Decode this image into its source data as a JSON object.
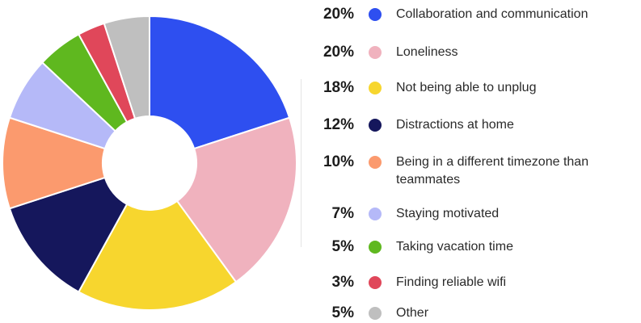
{
  "chart_data": {
    "type": "pie",
    "donut": true,
    "categories": [
      "Collaboration and communication",
      "Loneliness",
      "Not being able to unplug",
      "Distractions at home",
      "Being in a different timezone than teammates",
      "Staying motivated",
      "Taking vacation time",
      "Finding reliable wifi",
      "Other"
    ],
    "values": [
      20,
      20,
      18,
      12,
      10,
      7,
      5,
      3,
      5
    ],
    "value_labels": [
      "20%",
      "20%",
      "18%",
      "12%",
      "10%",
      "7%",
      "5%",
      "3%",
      "5%"
    ],
    "label_lines": [
      [
        "Collaboration and communication"
      ],
      [
        "Loneliness"
      ],
      [
        "Not being able to unplug"
      ],
      [
        "Distractions at home"
      ],
      [
        "Being in a different timezone than",
        "teammates"
      ],
      [
        "Staying motivated"
      ],
      [
        "Taking vacation time"
      ],
      [
        "Finding reliable wifi"
      ],
      [
        "Other"
      ]
    ],
    "colors": [
      "#2e4ff0",
      "#f0b2be",
      "#f7d62e",
      "#15175c",
      "#fb9a6e",
      "#b5b9f8",
      "#5fb81f",
      "#e0475a",
      "#bfbfbf"
    ],
    "title": "",
    "legend": "right"
  }
}
